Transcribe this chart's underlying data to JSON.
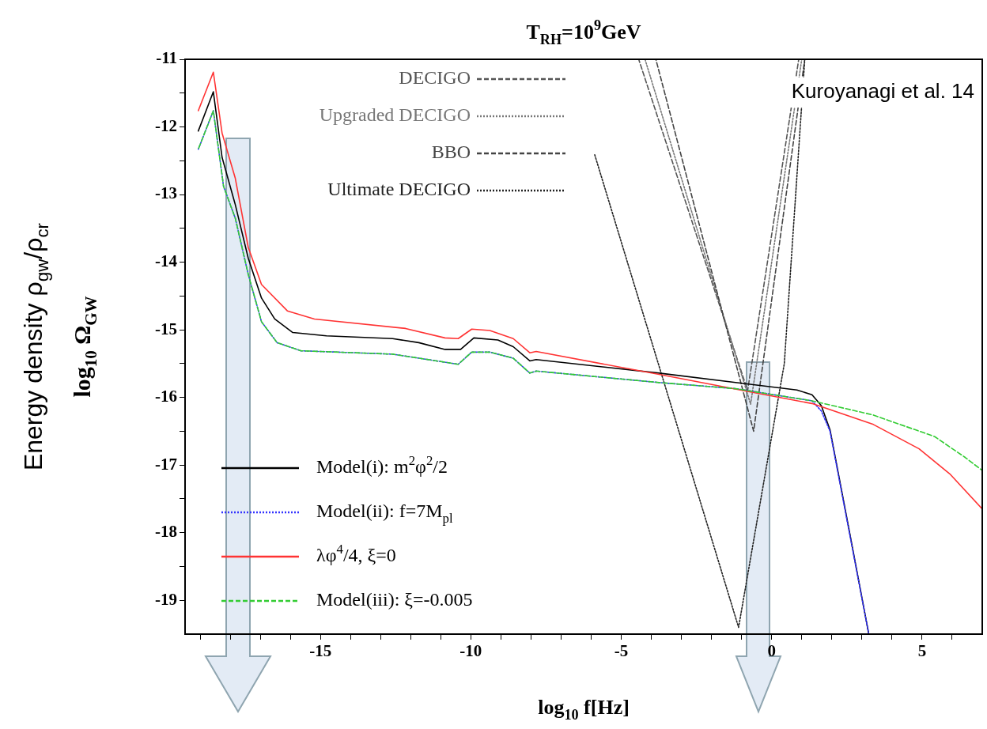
{
  "chart_data": {
    "type": "line",
    "title": "T$_{RH}$=10$^{9}$GeV",
    "xlabel": "log$_{10}$ f[Hz]",
    "ylabel": "log$_{10}$ Ω$_{GW}$",
    "annotations": [
      "Energy density ρ$_{gw}$/ρ$_{cr}$",
      "Kuroyanagi et al. 14"
    ],
    "xlim": [
      -19.5,
      7
    ],
    "ylim": [
      -19.5,
      -11
    ],
    "xticks": [
      {
        "value": -19,
        "label": null
      },
      {
        "value": -18,
        "label": null
      },
      {
        "value": -17,
        "label": null
      },
      {
        "value": -16,
        "label": null
      },
      -15,
      {
        "value": -14,
        "label": null
      },
      {
        "value": -13,
        "label": null
      },
      {
        "value": -12,
        "label": null
      },
      {
        "value": -11,
        "label": null
      },
      -10,
      {
        "value": -9,
        "label": null
      },
      {
        "value": -8,
        "label": null
      },
      {
        "value": -7,
        "label": null
      },
      {
        "value": -6,
        "label": null
      },
      -5,
      {
        "value": -4,
        "label": null
      },
      {
        "value": -3,
        "label": null
      },
      {
        "value": -2,
        "label": null
      },
      {
        "value": -1,
        "label": null
      },
      0,
      {
        "value": 1,
        "label": null
      },
      {
        "value": 2,
        "label": null
      },
      {
        "value": 3,
        "label": null
      },
      {
        "value": 4,
        "label": null
      },
      5,
      {
        "value": 6,
        "label": null
      }
    ],
    "yticks": [
      -19,
      {
        "value": -18.5,
        "label": null
      },
      -18,
      {
        "value": -17.5,
        "label": null
      },
      -17,
      {
        "value": -16.5,
        "label": null
      },
      -16,
      {
        "value": -15.5,
        "label": null
      },
      -15,
      {
        "value": -14.5,
        "label": null
      },
      -14,
      {
        "value": -13.5,
        "label": null
      },
      -13,
      {
        "value": -12.5,
        "label": null
      },
      -12,
      {
        "value": -11.5,
        "label": null
      },
      -11
    ],
    "grid": false,
    "legend": "left",
    "marker": "none",
    "series": [
      {
        "name": "DECIGO",
        "color": "#555555",
        "line_style": "dashed",
        "x": [
          -4.42,
          -0.8,
          0.9
        ],
        "values": [
          -11,
          -15.9,
          -11
        ]
      },
      {
        "name": "Upgraded DECIGO",
        "color": "#777777",
        "line_style": "dotted",
        "x": [
          -4.21,
          -0.7,
          1.0
        ],
        "values": [
          -11,
          -16.1,
          -11
        ]
      },
      {
        "name": "BBO",
        "color": "#444444",
        "line_style": "dashed",
        "x": [
          -3.85,
          -0.6,
          1.1
        ],
        "values": [
          -11,
          -16.5,
          -11
        ]
      },
      {
        "name": "Ultimate DECIGO",
        "color": "#222222",
        "line_style": "dotted",
        "x": [
          -5.89,
          -1.1,
          0.42,
          1.1
        ],
        "values": [
          -12.4,
          -19.4,
          -15.5,
          -11
        ]
      },
      {
        "name": "Model(i): m$^{2}$φ$^{2}$/2",
        "color": "#000000",
        "line_style": "solid",
        "x": [
          -19.06,
          -18.56,
          -18.27,
          -17.83,
          -17.4,
          -16.96,
          -16.52,
          -15.92,
          -14.8,
          -12.6,
          -11.73,
          -10.86,
          -10.34,
          -9.9,
          -9.1,
          -8.59,
          -8.04,
          -7.83,
          -3.74,
          -1.2,
          0.84,
          1.34,
          1.65,
          1.94,
          2.57,
          3.22
        ],
        "values": [
          -12.06,
          -11.48,
          -12.45,
          -13.15,
          -13.94,
          -14.53,
          -14.84,
          -15.04,
          -15.09,
          -15.13,
          -15.19,
          -15.29,
          -15.29,
          -15.12,
          -15.15,
          -15.25,
          -15.46,
          -15.44,
          -15.64,
          -15.78,
          -15.89,
          -15.96,
          -16.12,
          -16.48,
          -17.95,
          -19.48
        ]
      },
      {
        "name": "Model(ii): f=7M$_{pl}$",
        "color": "#3333ff",
        "line_style": "dotted",
        "x": [
          -19.06,
          -18.56,
          -18.22,
          -17.83,
          -17.4,
          -16.96,
          -16.44,
          -15.65,
          -12.6,
          -11.28,
          -10.42,
          -9.97,
          -9.37,
          -8.59,
          -8.04,
          -7.83,
          -3.74,
          -1.2,
          1.34,
          1.65,
          1.94,
          2.57,
          3.22
        ],
        "values": [
          -12.33,
          -11.76,
          -12.88,
          -13.35,
          -14.18,
          -14.88,
          -15.19,
          -15.31,
          -15.36,
          -15.45,
          -15.51,
          -15.33,
          -15.33,
          -15.42,
          -15.64,
          -15.61,
          -15.78,
          -15.87,
          -16.05,
          -16.2,
          -16.5,
          -17.97,
          -19.48
        ]
      },
      {
        "name": "λφ$^{4}$/4, ξ=0",
        "color": "#ff3333",
        "line_style": "solid",
        "x": [
          -19.06,
          -18.56,
          -18.27,
          -17.83,
          -17.4,
          -16.96,
          -16.1,
          -15.2,
          -12.17,
          -10.86,
          -10.42,
          -9.97,
          -9.37,
          -8.59,
          -8.04,
          -7.83,
          -3.74,
          -0.7,
          1.34,
          3.38,
          4.9,
          5.92,
          7
        ],
        "values": [
          -11.76,
          -11.19,
          -12.09,
          -12.76,
          -13.78,
          -14.33,
          -14.72,
          -14.84,
          -14.98,
          -15.12,
          -15.13,
          -14.99,
          -15.01,
          -15.13,
          -15.34,
          -15.32,
          -15.66,
          -15.92,
          -16.09,
          -16.4,
          -16.76,
          -17.13,
          -17.65
        ]
      },
      {
        "name": "Model(iii): ξ=-0.005",
        "color": "#33cc33",
        "line_style": "dashed",
        "x": [
          -19.06,
          -18.56,
          -18.22,
          -17.83,
          -17.4,
          -16.96,
          -16.44,
          -15.65,
          -12.6,
          -11.28,
          -10.42,
          -9.97,
          -9.37,
          -8.59,
          -8.04,
          -7.83,
          -3.74,
          -1.2,
          1.34,
          3.38,
          5.42,
          6.44,
          7
        ],
        "values": [
          -12.33,
          -11.76,
          -12.88,
          -13.35,
          -14.18,
          -14.88,
          -15.19,
          -15.31,
          -15.36,
          -15.45,
          -15.51,
          -15.33,
          -15.33,
          -15.42,
          -15.64,
          -15.61,
          -15.78,
          -15.87,
          -16.05,
          -16.26,
          -16.58,
          -16.89,
          -17.08
        ]
      }
    ]
  }
}
